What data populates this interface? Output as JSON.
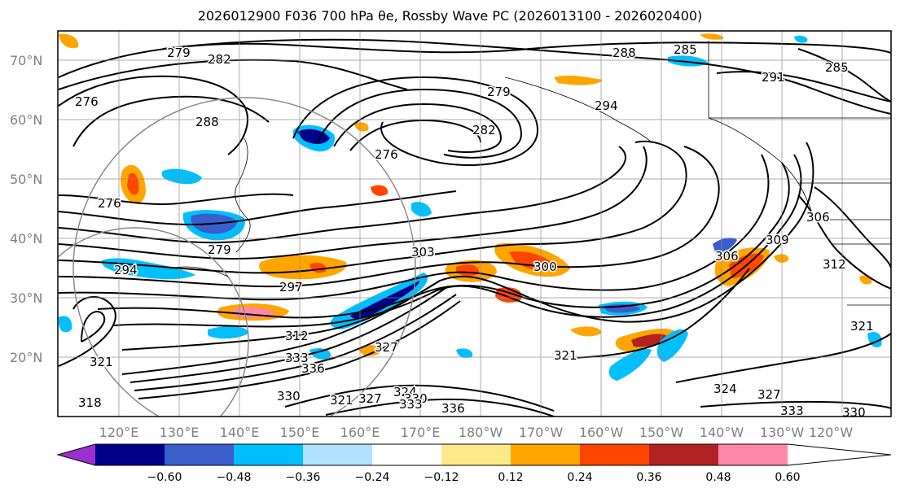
{
  "title": "2026012900 F036 700 hPa θe, Rossby Wave PC (2026013100 - 2026020400)",
  "map": {
    "lat_labels": [
      "70°N",
      "60°N",
      "50°N",
      "40°N",
      "30°N",
      "20°N"
    ],
    "lon_labels": [
      "120°E",
      "130°E",
      "140°E",
      "150°E",
      "160°E",
      "170°E",
      "180°W",
      "170°W",
      "160°W",
      "150°W",
      "140°W",
      "130°W",
      "120°W"
    ],
    "contour_labels": [
      "279",
      "282",
      "276",
      "288",
      "276",
      "279",
      "282",
      "294",
      "288",
      "285",
      "291",
      "285",
      "276",
      "279",
      "294",
      "297",
      "303",
      "300",
      "306",
      "309",
      "312",
      "306",
      "312",
      "321",
      "327",
      "330",
      "333",
      "336",
      "321",
      "327",
      "324",
      "330",
      "333",
      "336",
      "318",
      "321",
      "324",
      "327",
      "333",
      "330",
      "321"
    ]
  },
  "colorbar": {
    "ticks": [
      "−0.60",
      "−0.48",
      "−0.36",
      "−0.24",
      "−0.12",
      "0.12",
      "0.24",
      "0.36",
      "0.48",
      "0.60"
    ],
    "colors": [
      "#9b30d0",
      "#00008b",
      "#3a5fcd",
      "#00bfff",
      "#b0e2ff",
      "#ffffff",
      "#fce98a",
      "#ffa500",
      "#ff4500",
      "#b22222",
      "#ff88aa"
    ]
  }
}
